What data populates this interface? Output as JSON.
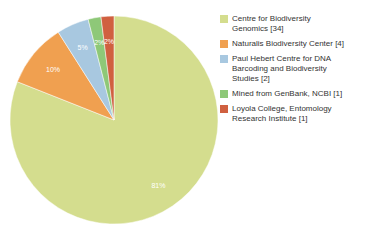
{
  "chart_data": {
    "type": "pie",
    "categories": [
      "Centre for Biodiversity\nGenomics [34]",
      "Naturalis Biodiversity Center [4]",
      "Paul Hebert Centre for DNA\nBarcoding and Biodiversity\nStudies [2]",
      "Mined from GenBank, NCBI [1]",
      "Loyola College, Entomology\nResearch Institute [1]"
    ],
    "values": [
      81,
      10,
      5,
      2,
      2
    ],
    "value_labels": [
      "81%",
      "10%",
      "5%",
      "2%",
      "2%"
    ],
    "colors": [
      "#d4dd8e",
      "#f0a050",
      "#a8c8e0",
      "#8ec878",
      "#d06040"
    ],
    "data_labels": true,
    "legend": "right"
  }
}
